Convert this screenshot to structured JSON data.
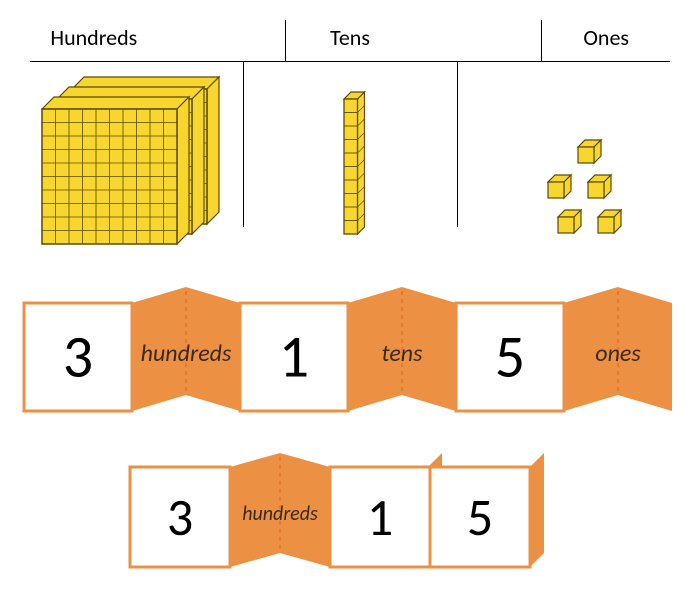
{
  "table": {
    "headers": [
      "Hundreds",
      "Tens",
      "Ones"
    ],
    "hundreds_count": 3,
    "tens_count": 1,
    "ones_count": 5,
    "block_face": "#f7d62f",
    "block_stroke": "#5b4a00",
    "header_fontsize": 22
  },
  "strip1": {
    "segments": [
      {
        "type": "num",
        "text": "3"
      },
      {
        "type": "word",
        "text": "hundreds"
      },
      {
        "type": "num",
        "text": "1"
      },
      {
        "type": "word",
        "text": "tens"
      },
      {
        "type": "num",
        "text": "5"
      },
      {
        "type": "word",
        "text": "ones"
      }
    ],
    "num_bg": "#ffffff",
    "num_border": "#ec9044",
    "word_bg": "#ec9044",
    "word_dash": "#e6732a",
    "word_text": "#3b2a1a",
    "num_font": 60,
    "word_font": 24,
    "seg_w": 108,
    "seg_h": 108,
    "fold_off": 16
  },
  "strip2": {
    "segments": [
      {
        "type": "num",
        "text": "3"
      },
      {
        "type": "word",
        "text": "hundreds"
      },
      {
        "type": "num",
        "text": "1"
      },
      {
        "type": "num",
        "text": "5"
      }
    ],
    "edge_flap": true,
    "num_bg": "#ffffff",
    "num_border": "#ec9044",
    "word_bg": "#ec9044",
    "word_dash": "#e6732a",
    "word_text": "#3b2a1a",
    "num_font": 52,
    "word_font": 20,
    "seg_w": 100,
    "seg_h": 100,
    "fold_off": 14
  }
}
